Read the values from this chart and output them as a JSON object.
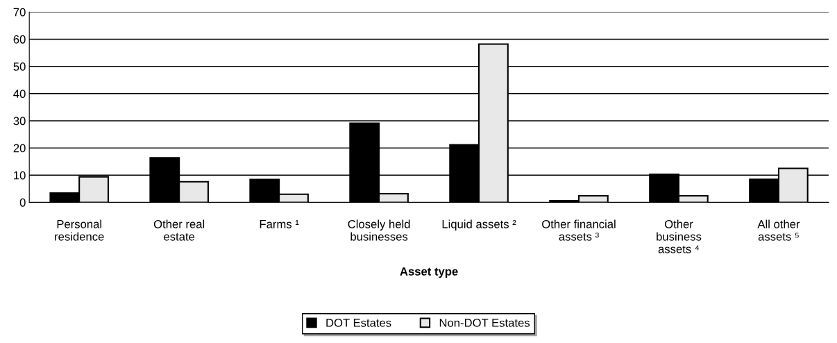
{
  "chart_data": {
    "type": "bar",
    "xlabel": "Asset type",
    "categories": [
      "Personal\nresidence",
      "Other real\nestate",
      "Farms ¹",
      "Closely held\nbusinesses",
      "Liquid assets ²",
      "Other financial\nassets ³",
      "Other\nbusiness\nassets ⁴",
      "All other\nassets ⁵"
    ],
    "series": [
      {
        "name": "DOT Estates",
        "color": "#000000",
        "values": [
          3.4,
          16.4,
          8.4,
          29.1,
          21.2,
          0.6,
          10.3,
          8.5
        ]
      },
      {
        "name": "Non-DOT Estates",
        "color": "#e8e8e8",
        "values": [
          9.4,
          7.6,
          3.0,
          3.2,
          58.2,
          2.4,
          2.4,
          12.5
        ]
      }
    ],
    "ylim": [
      0,
      70
    ],
    "yticks": [
      0,
      10,
      20,
      30,
      40,
      50,
      60,
      70
    ],
    "grid": "y",
    "legend": "bottom"
  }
}
